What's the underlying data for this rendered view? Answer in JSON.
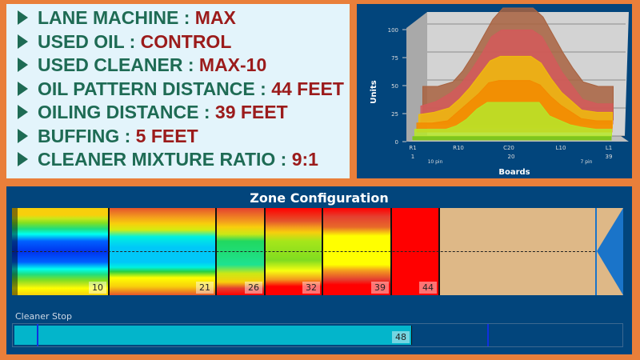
{
  "info": [
    {
      "label": "LANE MACHINE : ",
      "value": "MAX"
    },
    {
      "label": "USED OIL : ",
      "value": "CONTROL"
    },
    {
      "label": "USED CLEANER : ",
      "value": "MAX-10"
    },
    {
      "label": "OIL PATTERN DISTANCE : ",
      "value": "44 FEET"
    },
    {
      "label": "OILING DISTANCE : ",
      "value": "39 FEET"
    },
    {
      "label": "BUFFING : ",
      "value": "5 FEET"
    },
    {
      "label": "CLEANER MIXTURE RATIO : ",
      "value": "9:1"
    }
  ],
  "chart_data": {
    "type": "area",
    "ylabel": "Units",
    "xlabel": "Boards",
    "ylim": [
      0,
      100
    ],
    "yticks": [
      "0",
      "25",
      "50",
      "75",
      "100"
    ],
    "xticks": [
      "R1",
      "R10",
      "C20",
      "L10",
      "L1"
    ],
    "xticks2": [
      "1",
      "20",
      "39"
    ],
    "annotations": [
      "10 pin",
      "7 pin"
    ],
    "x": [
      1,
      4,
      7,
      9,
      11,
      13,
      15,
      17,
      23,
      25,
      27,
      29,
      31,
      33,
      36,
      39
    ],
    "series": [
      {
        "color": "#7fc51e",
        "values": [
          3,
          3,
          3,
          3,
          3,
          3,
          3,
          3,
          3,
          3,
          3,
          3,
          3,
          3,
          3,
          3
        ]
      },
      {
        "color": "#b6e72a",
        "values": [
          6,
          6,
          6,
          9,
          15,
          24,
          30,
          30,
          30,
          30,
          18,
          14,
          10,
          8,
          6,
          6
        ]
      },
      {
        "color": "#f38a00",
        "values": [
          8,
          8,
          10,
          18,
          26,
          34,
          44,
          46,
          46,
          42,
          32,
          24,
          18,
          12,
          10,
          10
        ]
      },
      {
        "color": "#f0bc0c",
        "values": [
          12,
          14,
          18,
          26,
          36,
          48,
          60,
          64,
          64,
          58,
          44,
          32,
          24,
          16,
          14,
          14
        ]
      },
      {
        "color": "#d35a5a",
        "values": [
          16,
          20,
          28,
          36,
          48,
          62,
          78,
          84,
          84,
          78,
          62,
          46,
          34,
          22,
          18,
          18
        ]
      },
      {
        "color": "#a8623f",
        "values": [
          30,
          30,
          34,
          44,
          58,
          74,
          90,
          100,
          100,
          92,
          76,
          60,
          46,
          34,
          30,
          30
        ]
      }
    ]
  },
  "zone": {
    "title": "Zone Configuration",
    "segments": [
      "10",
      "21",
      "26",
      "32",
      "39",
      "44"
    ],
    "cleaner_stop_label": "Cleaner Stop",
    "cleaner_stop_value": "48"
  }
}
